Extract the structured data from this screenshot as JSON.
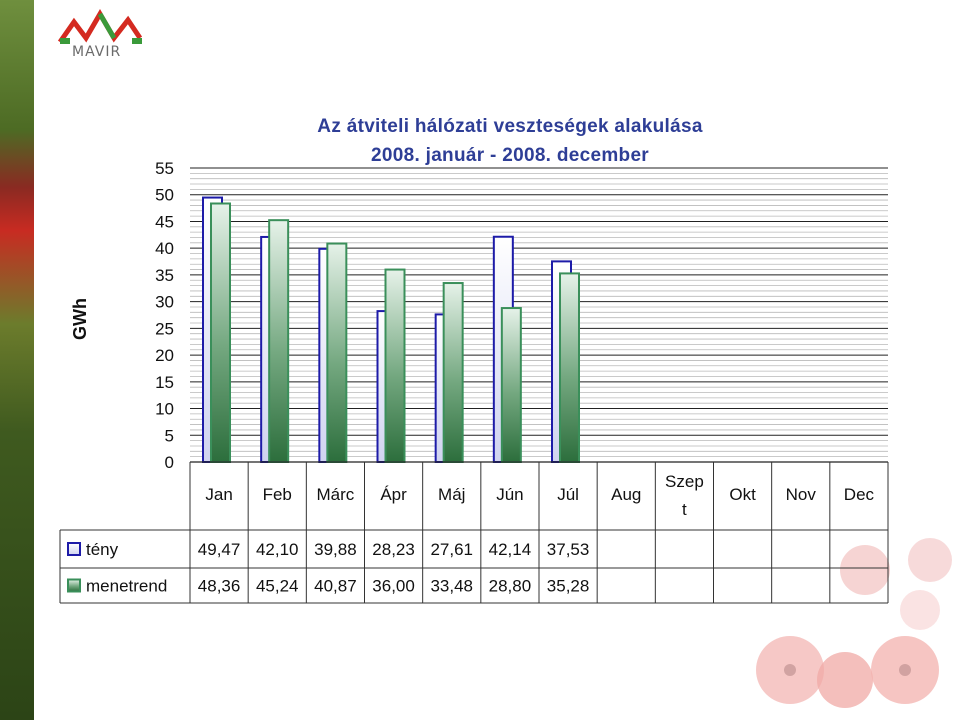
{
  "logo": {
    "text": "MAVIR"
  },
  "chart_data": {
    "type": "bar",
    "title": "Az átviteli hálózati veszteségek alakulása",
    "subtitle": "2008. január - 2008. december",
    "ylabel": "GWh",
    "xlabel": "",
    "ylim": [
      0,
      55
    ],
    "yticks": [
      "55",
      "50",
      "45",
      "40",
      "35",
      "30",
      "25",
      "20",
      "15",
      "10",
      "5",
      "0"
    ],
    "minor_grid_step": 1,
    "categories": [
      "Jan",
      "Feb",
      "Márc",
      "Ápr",
      "Máj",
      "Jún",
      "Júl",
      "Aug",
      "Szep\nt",
      "Okt",
      "Nov",
      "Dec"
    ],
    "series": [
      {
        "name": "tény",
        "color": "#1d1ba8",
        "fill": "#dde0f6",
        "values": [
          49.47,
          42.1,
          39.88,
          28.23,
          27.61,
          42.14,
          37.53,
          null,
          null,
          null,
          null,
          null
        ],
        "labels": [
          "49,47",
          "42,10",
          "39,88",
          "28,23",
          "27,61",
          "42,14",
          "37,53",
          "",
          "",
          "",
          "",
          ""
        ]
      },
      {
        "name": "menetrend",
        "color": "#3a8f5a",
        "fill": "#2f7a42",
        "values": [
          48.36,
          45.24,
          40.87,
          36.0,
          33.48,
          28.8,
          35.28,
          null,
          null,
          null,
          null,
          null
        ],
        "labels": [
          "48,36",
          "45,24",
          "40,87",
          "36,00",
          "33,48",
          "28,80",
          "35,28",
          "",
          "",
          "",
          "",
          ""
        ]
      }
    ],
    "legend": "table-below",
    "grid": true
  }
}
